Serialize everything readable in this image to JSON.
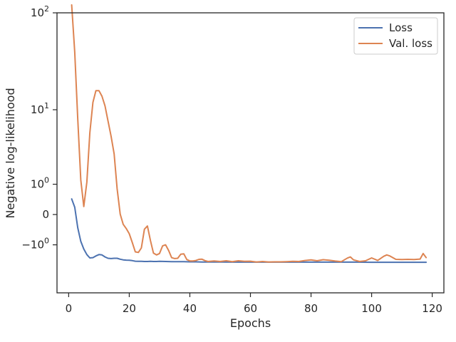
{
  "chart_data": {
    "type": "line",
    "xlabel": "Epochs",
    "ylabel": "Negative log-likelihood",
    "scale_y": "symlog",
    "xlim": [
      -3.85,
      123.85
    ],
    "ylim": [
      -5,
      100
    ],
    "x_ticks": [
      0,
      20,
      40,
      60,
      80,
      100,
      120
    ],
    "y_ticks": [
      {
        "value": 100,
        "base": "10",
        "exp": "2",
        "text": ""
      },
      {
        "value": 10,
        "base": "10",
        "exp": "1",
        "text": ""
      },
      {
        "value": 1,
        "base": "10",
        "exp": "0",
        "text": ""
      },
      {
        "value": 0,
        "base": "",
        "exp": "",
        "text": "0"
      },
      {
        "value": -1,
        "base": "−10",
        "exp": "0",
        "text": ""
      }
    ],
    "legend_position": "top-right",
    "series": [
      {
        "name": "Loss",
        "color": "#4c72b0",
        "x": [
          1,
          2,
          3,
          4,
          5,
          6,
          7,
          8,
          9,
          10,
          11,
          12,
          13,
          14,
          15,
          16,
          17,
          18,
          19,
          20,
          21,
          22,
          23,
          24,
          25,
          26,
          27,
          28,
          29,
          30,
          32,
          34,
          36,
          38,
          40,
          42,
          44,
          46,
          50,
          55,
          60,
          65,
          70,
          75,
          80,
          85,
          90,
          95,
          100,
          105,
          110,
          115,
          118
        ],
        "y": [
          0.43,
          0.18,
          -0.35,
          -0.85,
          -1.2,
          -1.5,
          -1.7,
          -1.68,
          -1.58,
          -1.5,
          -1.52,
          -1.64,
          -1.72,
          -1.74,
          -1.72,
          -1.72,
          -1.78,
          -1.82,
          -1.84,
          -1.85,
          -1.87,
          -1.91,
          -1.92,
          -1.92,
          -1.93,
          -1.93,
          -1.92,
          -1.93,
          -1.93,
          -1.92,
          -1.93,
          -1.94,
          -1.94,
          -1.94,
          -1.95,
          -1.95,
          -1.96,
          -1.96,
          -1.96,
          -1.97,
          -1.97,
          -1.97,
          -1.97,
          -1.97,
          -1.97,
          -1.97,
          -1.97,
          -1.97,
          -1.98,
          -1.98,
          -1.98,
          -1.98,
          -1.98
        ]
      },
      {
        "name": "Val. loss",
        "color": "#dd8452",
        "x": [
          1,
          2,
          3,
          4,
          5,
          6,
          7,
          8,
          9,
          10,
          11,
          12,
          13,
          14,
          15,
          16,
          17,
          18,
          19,
          20,
          21,
          22,
          23,
          24,
          25,
          26,
          27,
          28,
          29,
          30,
          31,
          32,
          33,
          34,
          35,
          36,
          37,
          38,
          39,
          40,
          41,
          42,
          43,
          44,
          45,
          46,
          48,
          50,
          52,
          54,
          56,
          58,
          60,
          62,
          64,
          66,
          68,
          70,
          72,
          74,
          76,
          78,
          80,
          82,
          84,
          86,
          88,
          90,
          92,
          93,
          94,
          96,
          98,
          100,
          102,
          104,
          105,
          106,
          108,
          110,
          112,
          114,
          116,
          117,
          118
        ],
        "y": [
          120,
          40,
          8,
          1.2,
          0.2,
          1.1,
          5.5,
          12,
          16,
          16,
          14,
          11,
          7.5,
          5,
          3,
          0.8,
          0.01,
          -0.25,
          -0.38,
          -0.55,
          -0.9,
          -1.35,
          -1.38,
          -1.15,
          -0.4,
          -0.3,
          -0.82,
          -1.42,
          -1.52,
          -1.44,
          -1.05,
          -1.0,
          -1.28,
          -1.68,
          -1.74,
          -1.72,
          -1.48,
          -1.46,
          -1.8,
          -1.89,
          -1.89,
          -1.86,
          -1.79,
          -1.78,
          -1.87,
          -1.93,
          -1.89,
          -1.93,
          -1.88,
          -1.94,
          -1.88,
          -1.92,
          -1.91,
          -1.96,
          -1.93,
          -1.96,
          -1.95,
          -1.95,
          -1.94,
          -1.92,
          -1.93,
          -1.86,
          -1.82,
          -1.88,
          -1.81,
          -1.85,
          -1.9,
          -1.94,
          -1.71,
          -1.64,
          -1.82,
          -1.93,
          -1.88,
          -1.7,
          -1.86,
          -1.6,
          -1.52,
          -1.58,
          -1.79,
          -1.8,
          -1.79,
          -1.8,
          -1.77,
          -1.44,
          -1.68
        ]
      }
    ]
  }
}
